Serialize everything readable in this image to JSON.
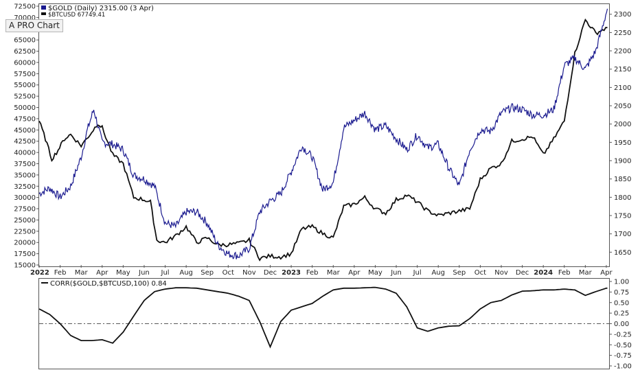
{
  "chart_data": [
    {
      "type": "line",
      "legend": [
        {
          "text": "$GOLD (Daily) 2315.00 (3 Apr)",
          "color": "#1a1a8f"
        },
        {
          "text": "$BTCUSD 67749.41",
          "color": "#111111"
        }
      ],
      "left_axis": {
        "ticks": [
          "72500",
          "70000",
          "67500",
          "65000",
          "62500",
          "60000",
          "57500",
          "55000",
          "52500",
          "50000",
          "47500",
          "45000",
          "42500",
          "40000",
          "37500",
          "35000",
          "32500",
          "30000",
          "27500",
          "25000",
          "22500",
          "20000",
          "17500",
          "15000"
        ],
        "ylim": [
          15000,
          72500
        ]
      },
      "right_axis": {
        "ticks": [
          "2300",
          "2250",
          "2200",
          "2150",
          "2100",
          "2050",
          "2000",
          "1950",
          "1900",
          "1850",
          "1800",
          "1750",
          "1700",
          "1650"
        ],
        "ylim": [
          1615,
          2322
        ]
      },
      "x_ticks": [
        "2022",
        "Feb",
        "Mar",
        "Apr",
        "May",
        "Jun",
        "Jul",
        "Aug",
        "Sep",
        "Oct",
        "Nov",
        "Dec",
        "2023",
        "Feb",
        "Mar",
        "Apr",
        "May",
        "Jun",
        "Jul",
        "Aug",
        "Sep",
        "Oct",
        "Nov",
        "Dec",
        "2024",
        "Feb",
        "Mar",
        "Apr"
      ],
      "x_ticks_bold": [
        "2022",
        "2023",
        "2024"
      ],
      "series": [
        {
          "name": "$GOLD",
          "axis": "right",
          "color": "#1a1a8f",
          "x": [
            0,
            0.5,
            1,
            1.5,
            2,
            2.3,
            2.6,
            3,
            3.5,
            4,
            4.5,
            5,
            5.5,
            6,
            6.5,
            7,
            7.5,
            8,
            8.5,
            9,
            9.5,
            10,
            10.5,
            11,
            11.5,
            12,
            12.5,
            13,
            13.5,
            14,
            14.5,
            15,
            15.5,
            16,
            16.5,
            17,
            17.5,
            18,
            18.5,
            19,
            19.5,
            20,
            20.5,
            21,
            21.5,
            22,
            22.5,
            23,
            23.5,
            24,
            24.5,
            25,
            25.5,
            26,
            26.5,
            27.05
          ],
          "y": [
            1810,
            1825,
            1800,
            1830,
            1910,
            1985,
            2040,
            1950,
            1945,
            1930,
            1860,
            1850,
            1830,
            1730,
            1720,
            1760,
            1760,
            1730,
            1670,
            1645,
            1640,
            1660,
            1760,
            1790,
            1810,
            1870,
            1940,
            1910,
            1820,
            1840,
            1990,
            2010,
            2030,
            1985,
            1995,
            1960,
            1930,
            1970,
            1935,
            1945,
            1880,
            1830,
            1930,
            1985,
            1980,
            2030,
            2045,
            2040,
            2025,
            2025,
            2040,
            2160,
            2180,
            2150,
            2200,
            2315
          ]
        },
        {
          "name": "$BTCUSD",
          "axis": "left",
          "color": "#111111",
          "x": [
            0,
            0.3,
            0.6,
            0.9,
            1.2,
            1.5,
            2,
            2.5,
            2.8,
            3,
            3.5,
            4,
            4.5,
            5,
            5.3,
            5.6,
            6,
            6.5,
            7,
            7.5,
            8,
            8.5,
            9,
            9.5,
            10,
            10.5,
            11,
            11.5,
            12,
            12.5,
            13,
            13.5,
            14,
            14.5,
            15,
            15.5,
            16,
            16.5,
            17,
            17.5,
            18,
            18.5,
            19,
            19.5,
            20,
            20.5,
            21,
            21.5,
            22,
            22.5,
            23,
            23.5,
            24,
            24.5,
            25,
            25.5,
            26,
            26.5,
            27.05
          ],
          "y": [
            47000,
            43000,
            38500,
            40500,
            43000,
            44000,
            41500,
            44500,
            46500,
            45500,
            39500,
            37500,
            30000,
            29500,
            29000,
            20500,
            20000,
            21500,
            23500,
            20000,
            21000,
            19500,
            19500,
            19800,
            20500,
            16500,
            17000,
            16800,
            17500,
            23000,
            23500,
            22000,
            21000,
            28000,
            28500,
            30000,
            27500,
            26500,
            29500,
            30500,
            29000,
            27000,
            26000,
            26500,
            27000,
            27500,
            34000,
            36500,
            37500,
            42500,
            43000,
            43500,
            39500,
            43000,
            47000,
            62000,
            69500,
            66500,
            67749
          ]
        },
        {
          "name": "CORR($GOLD,$BTCUSD,100) 0.84",
          "axis": "corr",
          "color": "#111111",
          "x": [
            0,
            0.5,
            1,
            1.5,
            2,
            2.5,
            3,
            3.5,
            4,
            4.5,
            5,
            5.5,
            6,
            6.5,
            7,
            7.5,
            8,
            8.5,
            9,
            9.5,
            10,
            10.5,
            11,
            11.5,
            12,
            12.5,
            13,
            13.5,
            14,
            14.5,
            15,
            15.5,
            16,
            16.5,
            17,
            17.5,
            18,
            18.5,
            19,
            19.5,
            20,
            20.5,
            21,
            21.5,
            22,
            22.5,
            23,
            23.5,
            24,
            24.5,
            25,
            25.5,
            26,
            26.5,
            27,
            27.05
          ],
          "y": [
            0.35,
            0.22,
            0.0,
            -0.28,
            -0.4,
            -0.4,
            -0.38,
            -0.46,
            -0.2,
            0.18,
            0.55,
            0.76,
            0.82,
            0.85,
            0.85,
            0.84,
            0.8,
            0.76,
            0.72,
            0.65,
            0.55,
            0.05,
            -0.55,
            0.05,
            0.32,
            0.4,
            0.48,
            0.65,
            0.8,
            0.84,
            0.84,
            0.85,
            0.86,
            0.82,
            0.72,
            0.4,
            -0.1,
            -0.18,
            -0.1,
            -0.06,
            -0.05,
            0.12,
            0.35,
            0.5,
            0.55,
            0.68,
            0.77,
            0.78,
            0.8,
            0.8,
            0.82,
            0.8,
            0.67,
            0.76,
            0.84,
            0.84
          ]
        }
      ],
      "corr_panel": {
        "label": "CORR($GOLD,$BTCUSD,100) 0.84",
        "ticks": [
          "1.00",
          "0.75",
          "0.50",
          "0.25",
          "0.00",
          "-0.25",
          "-0.50",
          "-0.75",
          "-1.00"
        ],
        "ylim": [
          -1.0,
          1.0
        ]
      }
    }
  ],
  "ui": {
    "pro_chart_button": "A PRO Chart"
  }
}
